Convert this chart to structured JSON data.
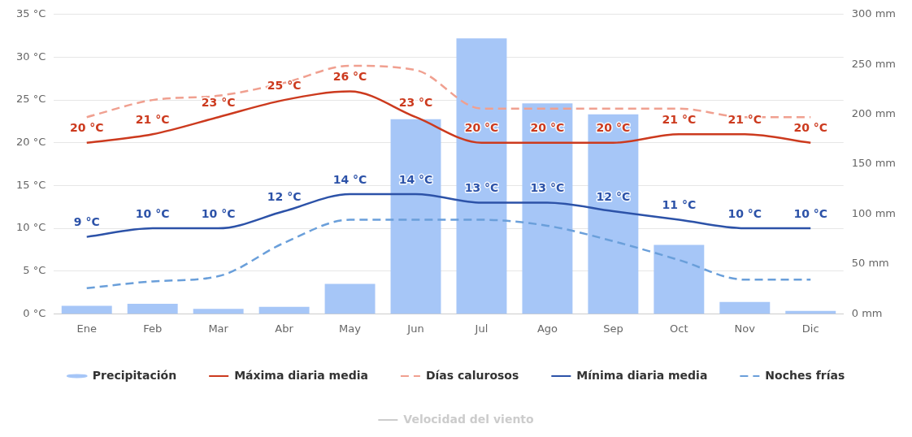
{
  "chart_data": {
    "type": "line",
    "categories": [
      "Ene",
      "Feb",
      "Mar",
      "Abr",
      "May",
      "Jun",
      "Jul",
      "Ago",
      "Sep",
      "Oct",
      "Nov",
      "Dic"
    ],
    "series": [
      {
        "name": "Precipitación",
        "type": "bar",
        "axis": "y2",
        "color": "#a6c6f7",
        "values": [
          8,
          10,
          5,
          7,
          30,
          195,
          276,
          211,
          200,
          69,
          12,
          3
        ]
      },
      {
        "name": "Máxima diaria media",
        "color": "#cc3a1e",
        "line_style": "solid",
        "values": [
          20,
          21,
          23,
          25,
          26,
          23,
          20,
          20,
          20,
          21,
          21,
          20
        ],
        "value_labels": [
          "20 °C",
          "21 °C",
          "23 °C",
          "25 °C",
          "26 °C",
          "23 °C",
          "20 °C",
          "20 °C",
          "20 °C",
          "21 °C",
          "21 °C",
          "20 °C"
        ]
      },
      {
        "name": "Días calurosos",
        "color": "#f0a090",
        "line_style": "dashed",
        "values": [
          23,
          25,
          25.5,
          27,
          29,
          28.5,
          24,
          24,
          24,
          24,
          23,
          23
        ]
      },
      {
        "name": "Mínima diaria media",
        "color": "#2c52a8",
        "line_style": "solid",
        "values": [
          9,
          10,
          10,
          12,
          14,
          14,
          13,
          13,
          12,
          11,
          10,
          10
        ],
        "value_labels": [
          "9 °C",
          "10 °C",
          "10 °C",
          "12 °C",
          "14 °C",
          "14 °C",
          "13 °C",
          "13 °C",
          "12 °C",
          "11 °C",
          "10 °C",
          "10 °C"
        ]
      },
      {
        "name": "Noches frías",
        "color": "#6a9fda",
        "line_style": "dashed",
        "values": [
          3,
          3.8,
          4.4,
          8.3,
          11,
          11,
          11,
          10.3,
          8.5,
          6.3,
          4,
          4
        ]
      },
      {
        "name": "Velocidad del viento",
        "color": "#cccccc",
        "line_style": "solid",
        "values": [
          null,
          null,
          null,
          null,
          null,
          null,
          null,
          null,
          null,
          null,
          null,
          null
        ]
      }
    ],
    "ylim": [
      0,
      35
    ],
    "yticks": [
      {
        "value": 0,
        "label": "0 °C"
      },
      {
        "value": 5,
        "label": "5 °C"
      },
      {
        "value": 10,
        "label": "10 °C"
      },
      {
        "value": 15,
        "label": "15 °C"
      },
      {
        "value": 20,
        "label": "20 °C"
      },
      {
        "value": 25,
        "label": "25 °C"
      },
      {
        "value": 30,
        "label": "30 °C"
      },
      {
        "value": 35,
        "label": "35 °C"
      }
    ],
    "y2lim": [
      0,
      300
    ],
    "y2ticks": [
      {
        "value": 0,
        "label": "0 mm"
      },
      {
        "value": 50,
        "label": "50 mm"
      },
      {
        "value": 100,
        "label": "100 mm"
      },
      {
        "value": 150,
        "label": "150 mm"
      },
      {
        "value": 200,
        "label": "200 mm"
      },
      {
        "value": 250,
        "label": "250 mm"
      },
      {
        "value": 300,
        "label": "300 mm"
      }
    ],
    "grid": "y",
    "legend": "bottom",
    "marker": "none"
  }
}
